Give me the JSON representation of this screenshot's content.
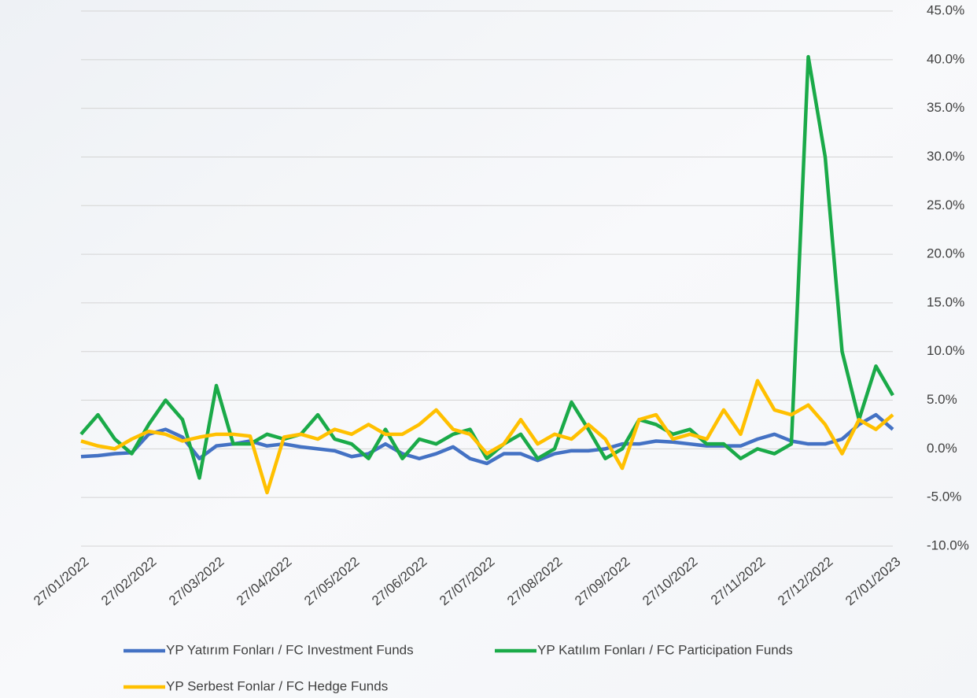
{
  "chart_data": {
    "type": "line",
    "categories": [
      "27/01/2022",
      null,
      null,
      null,
      "27/02/2022",
      null,
      null,
      null,
      "27/03/2022",
      null,
      null,
      null,
      "27/04/2022",
      null,
      null,
      null,
      "27/05/2022",
      null,
      null,
      null,
      "27/06/2022",
      null,
      null,
      null,
      "27/07/2022",
      null,
      null,
      null,
      "27/08/2022",
      null,
      null,
      null,
      "27/09/2022",
      null,
      null,
      null,
      "27/10/2022",
      null,
      null,
      null,
      "27/11/2022",
      null,
      null,
      null,
      "27/12/2022",
      null,
      null,
      null,
      "27/01/2023"
    ],
    "series": [
      {
        "name": "YP Yatırım Fonları / FC Investment Funds",
        "color": "#4472c4",
        "values": [
          -0.8,
          -0.7,
          -0.5,
          -0.4,
          1.5,
          2.0,
          1.2,
          -1.0,
          0.3,
          0.5,
          0.8,
          0.3,
          0.5,
          0.2,
          0.0,
          -0.2,
          -0.8,
          -0.5,
          0.5,
          -0.5,
          -1.0,
          -0.5,
          0.2,
          -1.0,
          -1.5,
          -0.5,
          -0.5,
          -1.2,
          -0.5,
          -0.2,
          -0.2,
          0.0,
          0.5,
          0.5,
          0.8,
          0.7,
          0.5,
          0.3,
          0.3,
          0.3,
          1.0,
          1.5,
          0.8,
          0.5,
          0.5,
          1.0,
          2.5,
          3.5,
          2.0
        ]
      },
      {
        "name": "YP Katılım Fonları / FC Participation Funds",
        "color": "#1aaa48",
        "values": [
          1.5,
          3.5,
          1.0,
          -0.5,
          2.5,
          5.0,
          3.0,
          -3.0,
          6.5,
          0.5,
          0.5,
          1.5,
          1.0,
          1.5,
          3.5,
          1.0,
          0.5,
          -1.0,
          2.0,
          -1.0,
          1.0,
          0.5,
          1.5,
          2.0,
          -1.0,
          0.5,
          1.5,
          -1.0,
          0.0,
          4.8,
          2.0,
          -1.0,
          0.0,
          3.0,
          2.5,
          1.5,
          2.0,
          0.5,
          0.5,
          -1.0,
          0.0,
          -0.5,
          0.5,
          40.3,
          30.0,
          10.0,
          3.0,
          8.5,
          5.5
        ]
      },
      {
        "name": "YP Serbest Fonlar / FC Hedge Funds",
        "color": "#ffc000",
        "values": [
          0.8,
          0.3,
          0.0,
          1.0,
          1.8,
          1.5,
          0.8,
          1.2,
          1.5,
          1.5,
          1.3,
          -4.5,
          1.2,
          1.5,
          1.0,
          2.0,
          1.5,
          2.5,
          1.5,
          1.5,
          2.5,
          4.0,
          2.0,
          1.5,
          -0.5,
          0.5,
          3.0,
          0.5,
          1.5,
          1.0,
          2.5,
          1.0,
          -2.0,
          3.0,
          3.5,
          1.0,
          1.5,
          1.0,
          4.0,
          1.5,
          7.0,
          4.0,
          3.5,
          4.5,
          2.5,
          -0.5,
          3.0,
          2.0,
          3.5
        ]
      }
    ],
    "ylim": [
      -10,
      45
    ],
    "yticks": [
      {
        "value": -10,
        "label": "-10.0%"
      },
      {
        "value": -5,
        "label": "-5.0%"
      },
      {
        "value": 0,
        "label": "0.0%"
      },
      {
        "value": 5,
        "label": "5.0%"
      },
      {
        "value": 10,
        "label": "10.0%"
      },
      {
        "value": 15,
        "label": "15.0%"
      },
      {
        "value": 20,
        "label": "20.0%"
      },
      {
        "value": 25,
        "label": "25.0%"
      },
      {
        "value": 30,
        "label": "30.0%"
      },
      {
        "value": 35,
        "label": "35.0%"
      },
      {
        "value": 40,
        "label": "40.0%"
      },
      {
        "value": 45,
        "label": "45.0%"
      }
    ],
    "grid": true
  }
}
